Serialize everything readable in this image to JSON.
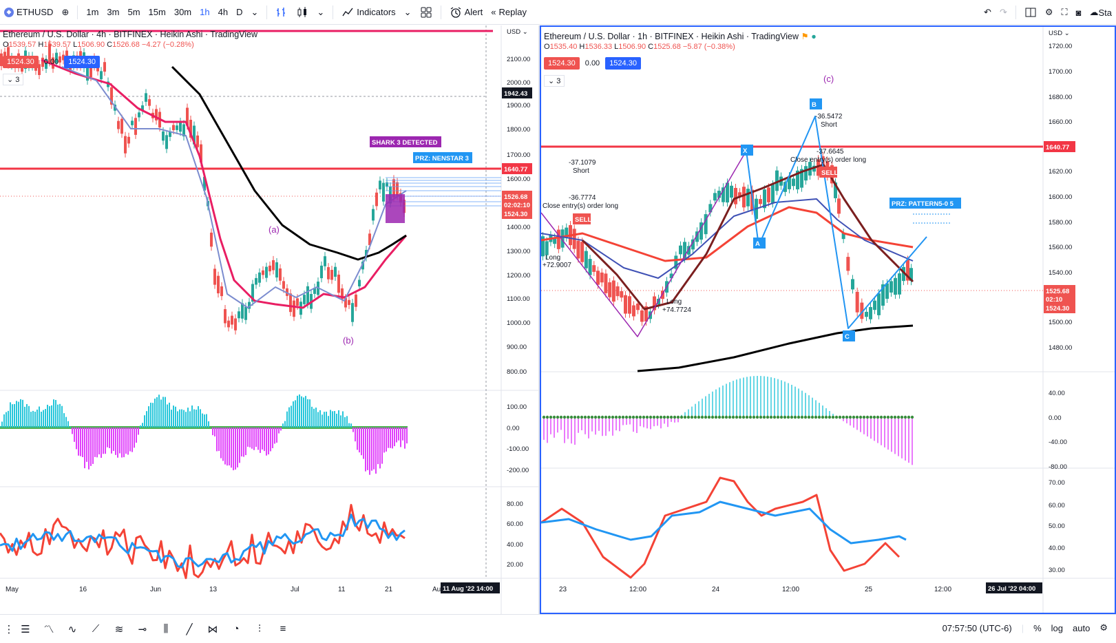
{
  "toolbar": {
    "symbol": "ETHUSD",
    "symbol_icon": "ethereum-icon",
    "intervals": [
      "1m",
      "3m",
      "5m",
      "15m",
      "30m",
      "1h",
      "4h",
      "D"
    ],
    "active_interval": "1h",
    "indicators_label": "Indicators",
    "alert_label": "Alert",
    "replay_label": "Replay",
    "right_cut_label": "Sta"
  },
  "left_chart": {
    "title": "Ethereum / U.S. Dollar · 4h · BITFINEX · Heikin Ashi · TradingView",
    "ohlc": {
      "o": "1539.57",
      "h": "1539.57",
      "l": "1506.90",
      "c": "1526.68",
      "chg": "−4.27 (−0.28%)"
    },
    "bid": "1524.30",
    "spread": "0.00",
    "ask": "1524.30",
    "collapse": "3",
    "axis_currency": "USD",
    "price_ticks": [
      "2100.00",
      "2000.00",
      "1900.00",
      "1800.00",
      "1700.00",
      "1600.00",
      "1400.00",
      "1300.00",
      "1200.00",
      "1100.00",
      "1000.00",
      "900.00",
      "800.00"
    ],
    "price_labels": {
      "crosshair": "1942.43",
      "level": "1640.77",
      "last": "1526.68",
      "countdown": "02:02:10",
      "bid": "1524.30"
    },
    "osc1_ticks": [
      "100.00",
      "0.00",
      "-100.00",
      "-200.00"
    ],
    "osc2_ticks": [
      "80.00",
      "60.00",
      "40.00",
      "20.00"
    ],
    "time_ticks": [
      "May",
      "16",
      "Jun",
      "13",
      "Jul",
      "11",
      "21",
      "Au"
    ],
    "time_cursor": "11 Aug '22    14:00",
    "annotations": {
      "shark": "SHARK 3 DETECTED",
      "prz": "PRZ: NENSTAR 3",
      "a": "(a)",
      "b": "(b)"
    }
  },
  "right_chart": {
    "title": "Ethereum / U.S. Dollar · 1h · BITFINEX · Heikin Ashi · TradingView",
    "ohlc": {
      "o": "1535.40",
      "h": "1536.33",
      "l": "1506.90",
      "c": "1525.68",
      "chg": "−5.87 (−0.38%)"
    },
    "bid": "1524.30",
    "spread": "0.00",
    "ask": "1524.30",
    "collapse": "3",
    "axis_currency": "USD",
    "price_ticks": [
      "1720.00",
      "1700.00",
      "1680.00",
      "1660.00",
      "1620.00",
      "1600.00",
      "1580.00",
      "1560.00",
      "1540.00",
      "1500.00",
      "1480.00"
    ],
    "price_labels": {
      "level": "1640.77",
      "last": "1525.68",
      "countdown": "02:10",
      "bid": "1524.30"
    },
    "osc1_ticks": [
      "40.00",
      "0.00",
      "-40.00",
      "-80.00"
    ],
    "osc2_ticks": [
      "70.00",
      "60.00",
      "50.00",
      "40.00",
      "30.00"
    ],
    "time_ticks": [
      "23",
      "12:00",
      "24",
      "12:00",
      "25",
      "12:00"
    ],
    "time_cursor": "26 Jul '22    04:00",
    "annotations": {
      "c": "(c)",
      "b": "B",
      "x": "X",
      "a": "A",
      "cpt": "C",
      "short1_pnl": "-37.1079",
      "short1": "Short",
      "close1_pnl": "-36.7774",
      "close1": "Close entry(s) order long",
      "long1": "Long",
      "long1_pnl": "+72.9007",
      "short2_pnl": "-36.5472",
      "short2": "Short",
      "close2_pnl": "-37.6645",
      "close2": "Close entry(s) order long",
      "long2": "Long",
      "long2_pnl": "+74.7724",
      "sell": "SELL",
      "prz": "PRZ: PATTERN5-0 5"
    }
  },
  "bottombar": {
    "time": "07:57:50 (UTC-6)",
    "percent": "%",
    "log": "log",
    "auto": "auto"
  },
  "colors": {
    "up": "#26a69a",
    "down": "#ef5350",
    "level": "#f23645",
    "blue": "#2962ff",
    "ema_pink": "#e91e63",
    "sma_black": "#000000",
    "pattern": "#9c27b0"
  }
}
